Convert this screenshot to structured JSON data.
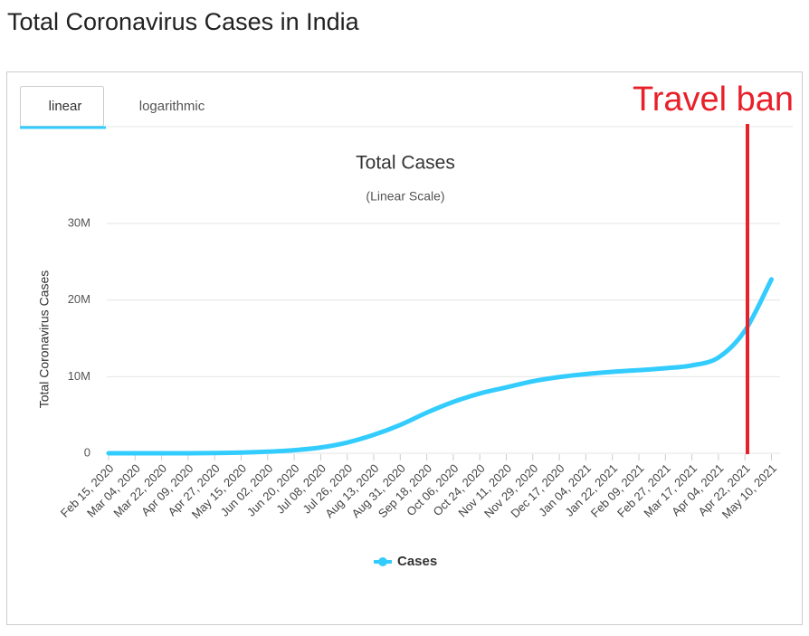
{
  "page": {
    "title": "Total Coronavirus Cases in India",
    "tabs": [
      "linear",
      "logarithmic"
    ]
  },
  "chart_data": {
    "type": "line",
    "title": "Total Cases",
    "subtitle": "(Linear Scale)",
    "y_label": "Total Coronavirus Cases",
    "annotation": "Travel ban",
    "categories": [
      "Feb 15, 2020",
      "Mar 04, 2020",
      "Mar 22, 2020",
      "Apr 09, 2020",
      "Apr 27, 2020",
      "May 15, 2020",
      "Jun 02, 2020",
      "Jun 20, 2020",
      "Jul 08, 2020",
      "Jul 26, 2020",
      "Aug 13, 2020",
      "Aug 31, 2020",
      "Sep 18, 2020",
      "Oct 06, 2020",
      "Oct 24, 2020",
      "Nov 11, 2020",
      "Nov 29, 2020",
      "Dec 17, 2020",
      "Jan 04, 2021",
      "Jan 22, 2021",
      "Feb 09, 2021",
      "Feb 27, 2021",
      "Mar 17, 2021",
      "Apr 04, 2021",
      "Apr 22, 2021",
      "May 10, 2021"
    ],
    "series": [
      {
        "name": "Cases",
        "color": "#33ccff",
        "values": [
          0,
          0,
          400,
          6000,
          30000,
          85000,
          200000,
          400000,
          750000,
          1400000,
          2400000,
          3700000,
          5300000,
          6700000,
          7800000,
          8600000,
          9400000,
          9950000,
          10340000,
          10630000,
          10850000,
          11100000,
          11470000,
          12500000,
          16000000,
          22700000
        ]
      }
    ],
    "ylim": [
      0,
      30000000
    ],
    "yticks": [
      0,
      {
        "value": 10000000,
        "label": "10M"
      },
      {
        "value": 20000000,
        "label": "20M"
      },
      {
        "value": 30000000,
        "label": "30M"
      }
    ],
    "grid": true
  }
}
